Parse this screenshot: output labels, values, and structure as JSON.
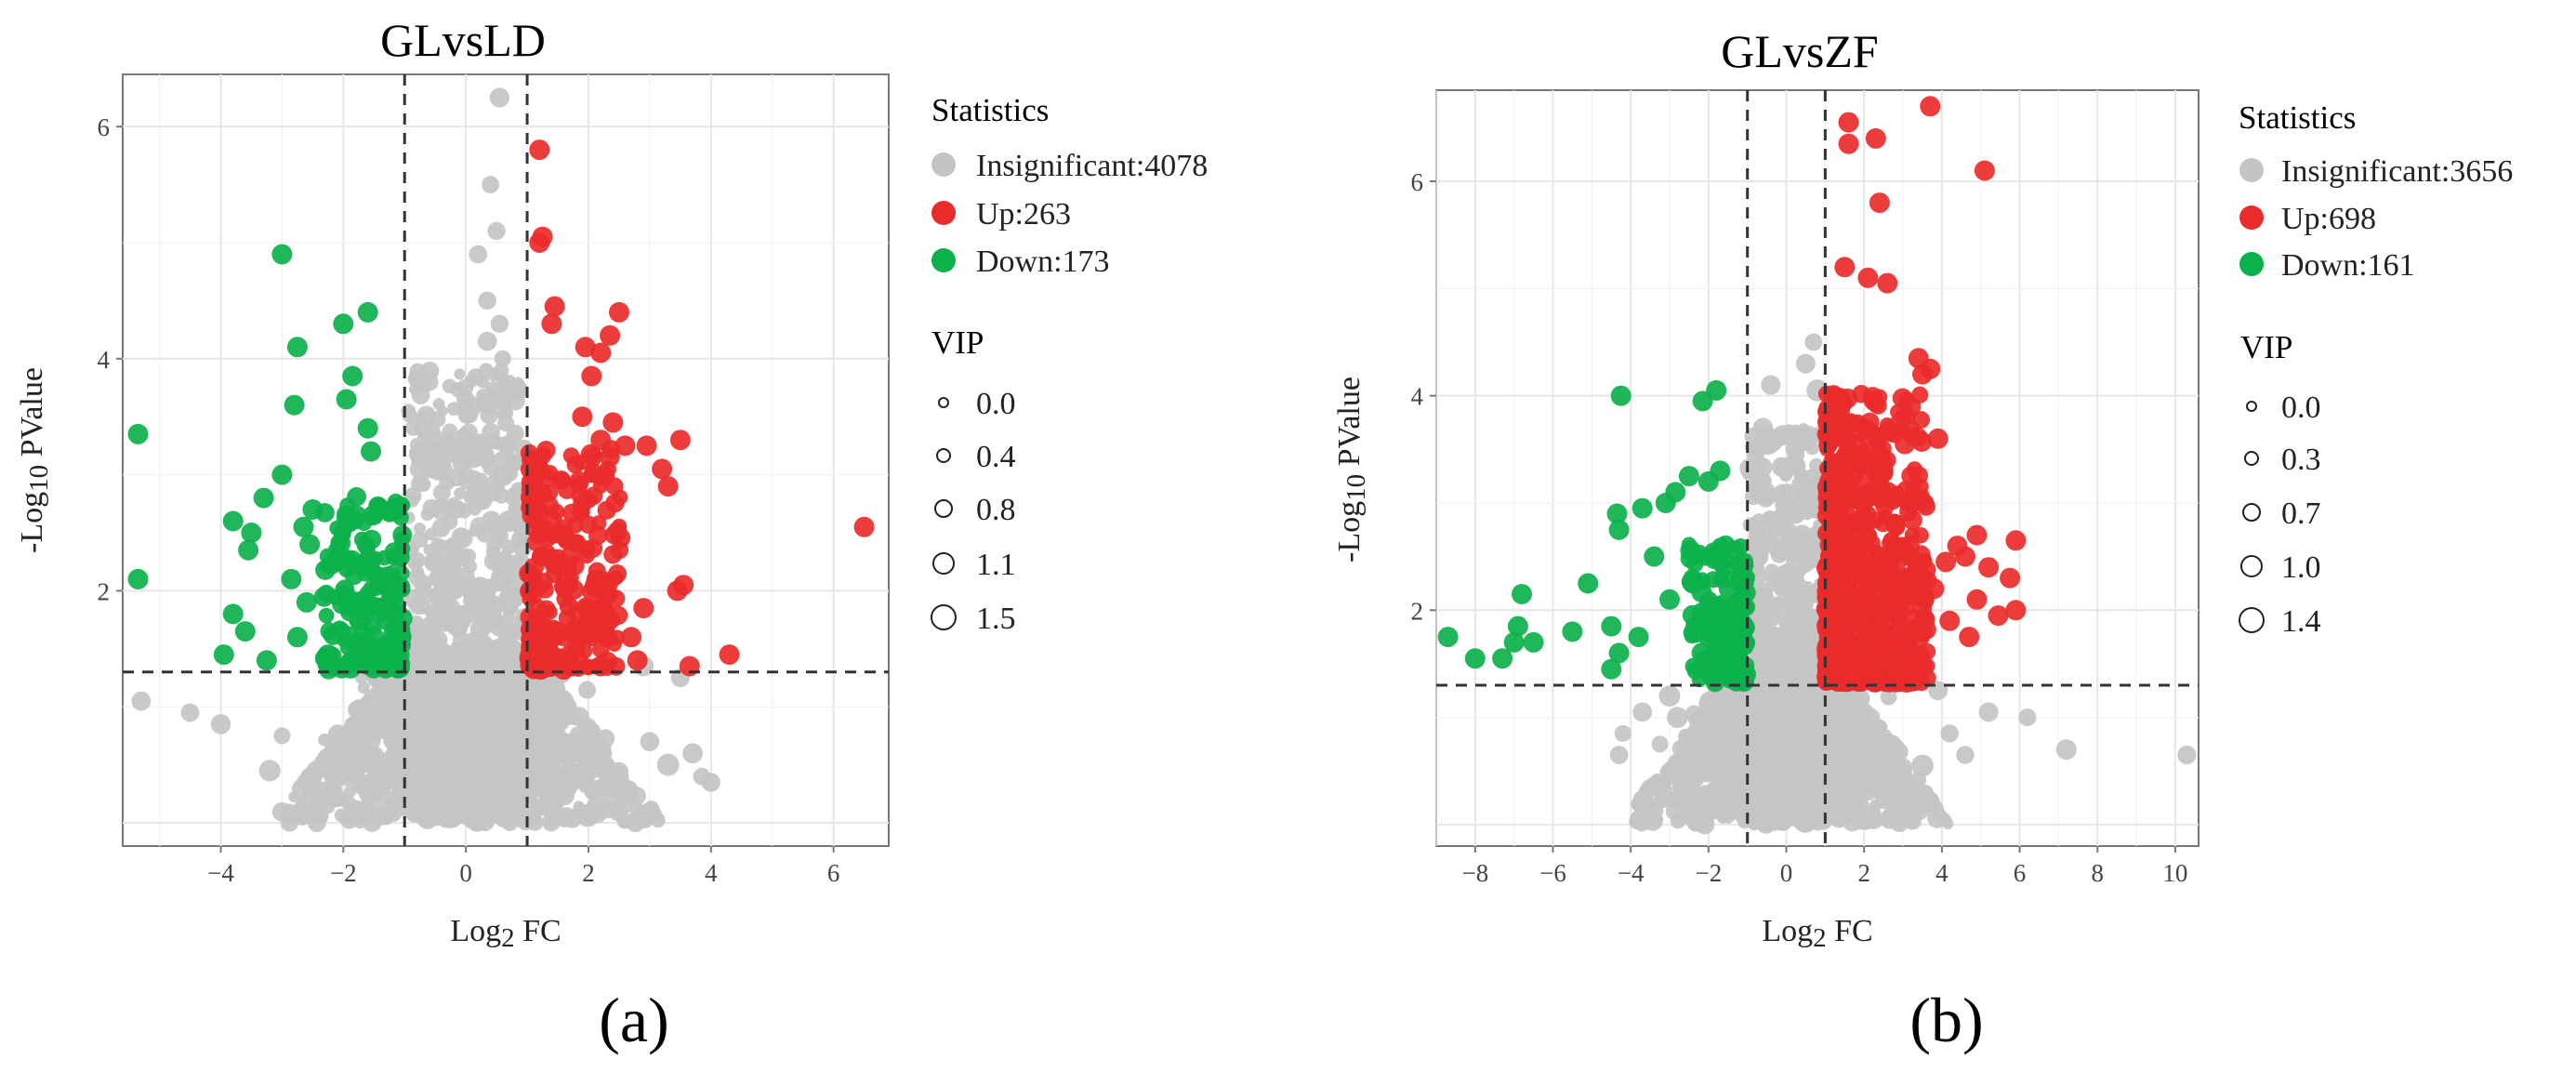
{
  "panels": [
    {
      "label": "(a)"
    },
    {
      "label": "(b)"
    }
  ],
  "colors": {
    "insignificant": "#c4c4c4",
    "up": "#ea2b2b",
    "down": "#0cb14b"
  },
  "chart_data": [
    {
      "type": "scatter",
      "title": "GLvsLD",
      "xlabel": "Log₂ FC",
      "ylabel": "-Log₁₀ PValue",
      "xlim": [
        -5.6,
        6.9
      ],
      "ylim": [
        -0.2,
        6.45
      ],
      "xticks": [
        -4,
        -2,
        0,
        2,
        4,
        6
      ],
      "yticks": [
        2,
        4,
        6
      ],
      "grid": true,
      "legend_position": "right",
      "thresholds": {
        "x": [
          -1,
          1
        ],
        "y": 1.3
      },
      "statistics_title": "Statistics",
      "statistics": [
        {
          "label": "Insignificant:4078",
          "group": "insignificant",
          "count": 4078
        },
        {
          "label": "Up:263",
          "group": "up",
          "count": 263
        },
        {
          "label": "Down:173",
          "group": "down",
          "count": 173
        }
      ],
      "vip_title": "VIP",
      "vip_values": [
        "0.0",
        "0.4",
        "0.8",
        "1.1",
        "1.5"
      ],
      "points": {
        "up": [
          [
            1.2,
            5.8
          ],
          [
            1.25,
            5.05
          ],
          [
            1.2,
            5.0
          ],
          [
            1.45,
            4.45
          ],
          [
            1.4,
            4.3
          ],
          [
            2.5,
            4.4
          ],
          [
            2.35,
            4.2
          ],
          [
            2.2,
            4.05
          ],
          [
            2.05,
            3.85
          ],
          [
            1.95,
            4.1
          ],
          [
            1.9,
            3.5
          ],
          [
            2.2,
            3.3
          ],
          [
            2.4,
            3.45
          ],
          [
            2.6,
            3.25
          ],
          [
            2.95,
            3.25
          ],
          [
            3.5,
            3.3
          ],
          [
            3.2,
            3.05
          ],
          [
            3.3,
            2.9
          ],
          [
            6.5,
            2.55
          ],
          [
            3.55,
            2.05
          ],
          [
            3.45,
            2.0
          ],
          [
            2.9,
            1.85
          ],
          [
            2.7,
            1.6
          ],
          [
            3.65,
            1.35
          ],
          [
            4.3,
            1.45
          ],
          [
            2.2,
            1.35
          ],
          [
            2.8,
            1.4
          ],
          [
            1.5,
            1.4
          ],
          [
            1.7,
            1.45
          ]
        ],
        "down": [
          [
            -5.35,
            3.35
          ],
          [
            -5.35,
            2.1
          ],
          [
            -3.0,
            4.9
          ],
          [
            -1.6,
            4.4
          ],
          [
            -2.0,
            4.3
          ],
          [
            -2.75,
            4.1
          ],
          [
            -1.85,
            3.85
          ],
          [
            -1.95,
            3.65
          ],
          [
            -2.8,
            3.6
          ],
          [
            -1.6,
            3.4
          ],
          [
            -1.55,
            3.2
          ],
          [
            -3.0,
            3.0
          ],
          [
            -3.3,
            2.8
          ],
          [
            -3.8,
            2.6
          ],
          [
            -3.5,
            2.5
          ],
          [
            -3.55,
            2.35
          ],
          [
            -2.85,
            2.1
          ],
          [
            -2.6,
            1.9
          ],
          [
            -2.75,
            1.6
          ],
          [
            -2.25,
            1.45
          ],
          [
            -3.25,
            1.4
          ],
          [
            -3.8,
            1.8
          ],
          [
            -3.6,
            1.65
          ],
          [
            -3.95,
            1.45
          ],
          [
            -2.5,
            2.7
          ],
          [
            -2.65,
            2.55
          ],
          [
            -2.55,
            2.4
          ]
        ],
        "insignificant": [
          [
            0.55,
            6.25
          ],
          [
            0.4,
            5.5
          ],
          [
            0.2,
            4.9
          ],
          [
            0.5,
            5.1
          ],
          [
            0.35,
            4.5
          ],
          [
            0.55,
            4.3
          ],
          [
            0.35,
            4.15
          ],
          [
            0.6,
            4.0
          ],
          [
            -0.6,
            3.8
          ],
          [
            -0.5,
            3.3
          ],
          [
            -0.45,
            3.1
          ],
          [
            -0.7,
            3.4
          ],
          [
            -0.75,
            3.05
          ],
          [
            -0.4,
            2.7
          ],
          [
            0.6,
            3.0
          ],
          [
            0.7,
            2.6
          ],
          [
            -5.3,
            1.05
          ],
          [
            -4.5,
            0.95
          ],
          [
            -4.0,
            0.85
          ],
          [
            -3.0,
            0.75
          ],
          [
            -3.2,
            0.45
          ],
          [
            -2.6,
            0.35
          ],
          [
            -2.2,
            0.55
          ],
          [
            3.0,
            0.7
          ],
          [
            3.3,
            0.5
          ],
          [
            3.7,
            0.6
          ],
          [
            3.85,
            0.4
          ],
          [
            4.0,
            0.35
          ],
          [
            2.5,
            0.4
          ],
          [
            2.2,
            0.3
          ],
          [
            3.5,
            1.25
          ],
          [
            2.9,
            1.35
          ]
        ]
      }
    },
    {
      "type": "scatter",
      "title": "GLvsZF",
      "xlabel": "Log₂ FC",
      "ylabel": "-Log₁₀ PValue",
      "xlim": [
        -9.0,
        10.6
      ],
      "ylim": [
        -0.2,
        6.85
      ],
      "xticks": [
        -8,
        -6,
        -4,
        -2,
        0,
        2,
        4,
        6,
        8,
        10
      ],
      "yticks": [
        2,
        4,
        6
      ],
      "grid": true,
      "legend_position": "right",
      "thresholds": {
        "x": [
          -1,
          1
        ],
        "y": 1.3
      },
      "statistics_title": "Statistics",
      "statistics": [
        {
          "label": "Insignificant:3656",
          "group": "insignificant",
          "count": 3656
        },
        {
          "label": "Up:698",
          "group": "up",
          "count": 698
        },
        {
          "label": "Down:161",
          "group": "down",
          "count": 161
        }
      ],
      "vip_title": "VIP",
      "vip_values": [
        "0.0",
        "0.3",
        "0.7",
        "1.0",
        "1.4"
      ],
      "points": {
        "up": [
          [
            3.7,
            6.7
          ],
          [
            1.6,
            6.55
          ],
          [
            1.6,
            6.35
          ],
          [
            2.3,
            6.4
          ],
          [
            5.1,
            6.1
          ],
          [
            2.4,
            5.8
          ],
          [
            2.1,
            5.1
          ],
          [
            2.6,
            5.05
          ],
          [
            1.5,
            5.2
          ],
          [
            3.4,
            4.35
          ],
          [
            3.7,
            4.25
          ],
          [
            3.5,
            4.2
          ],
          [
            3.2,
            3.9
          ],
          [
            3.05,
            3.55
          ],
          [
            3.9,
            3.6
          ],
          [
            4.4,
            2.6
          ],
          [
            4.6,
            2.5
          ],
          [
            4.9,
            2.7
          ],
          [
            5.9,
            2.65
          ],
          [
            5.75,
            2.3
          ],
          [
            5.9,
            2.0
          ],
          [
            5.2,
            2.4
          ],
          [
            4.9,
            2.1
          ],
          [
            5.45,
            1.95
          ],
          [
            4.7,
            1.75
          ],
          [
            4.2,
            1.9
          ],
          [
            3.8,
            2.2
          ],
          [
            4.1,
            2.45
          ],
          [
            3.5,
            1.8
          ],
          [
            3.0,
            1.75
          ],
          [
            2.5,
            1.7
          ],
          [
            2.0,
            1.5
          ],
          [
            1.5,
            1.4
          ],
          [
            3.2,
            3.0
          ],
          [
            2.8,
            2.8
          ]
        ],
        "down": [
          [
            -4.25,
            4.0
          ],
          [
            -1.8,
            4.05
          ],
          [
            -2.15,
            3.95
          ],
          [
            -8.7,
            1.75
          ],
          [
            -8.0,
            1.55
          ],
          [
            -7.3,
            1.55
          ],
          [
            -6.9,
            1.85
          ],
          [
            -6.8,
            2.15
          ],
          [
            -7.0,
            1.7
          ],
          [
            -6.5,
            1.7
          ],
          [
            -5.1,
            2.25
          ],
          [
            -5.5,
            1.8
          ],
          [
            -4.5,
            1.85
          ],
          [
            -4.35,
            2.9
          ],
          [
            -4.3,
            2.75
          ],
          [
            -3.7,
            2.95
          ],
          [
            -2.5,
            3.25
          ],
          [
            -3.1,
            3.0
          ],
          [
            -2.85,
            3.1
          ],
          [
            -1.7,
            3.3
          ],
          [
            -2.0,
            3.2
          ],
          [
            -4.3,
            1.6
          ],
          [
            -4.5,
            1.45
          ],
          [
            -3.8,
            1.75
          ],
          [
            -3.4,
            2.5
          ],
          [
            -3.0,
            2.1
          ],
          [
            -2.4,
            2.25
          ]
        ],
        "insignificant": [
          [
            0.7,
            4.5
          ],
          [
            0.5,
            4.3
          ],
          [
            0.8,
            4.05
          ],
          [
            -0.6,
            3.7
          ],
          [
            -0.8,
            3.45
          ],
          [
            -0.5,
            3.1
          ],
          [
            -0.3,
            2.6
          ],
          [
            0.4,
            2.7
          ],
          [
            -0.7,
            2.5
          ],
          [
            6.2,
            1.0
          ],
          [
            7.2,
            0.7
          ],
          [
            10.3,
            0.65
          ],
          [
            5.2,
            1.05
          ],
          [
            4.2,
            0.85
          ],
          [
            4.6,
            0.65
          ],
          [
            3.9,
            1.25
          ],
          [
            -3.0,
            1.2
          ],
          [
            -3.7,
            1.05
          ],
          [
            -4.2,
            0.85
          ],
          [
            -4.3,
            0.65
          ],
          [
            -3.25,
            0.75
          ],
          [
            -2.7,
            0.6
          ],
          [
            -2.8,
            1.0
          ],
          [
            3.5,
            0.55
          ],
          [
            3.2,
            0.35
          ],
          [
            -0.4,
            4.1
          ],
          [
            0.2,
            3.5
          ]
        ]
      }
    }
  ]
}
